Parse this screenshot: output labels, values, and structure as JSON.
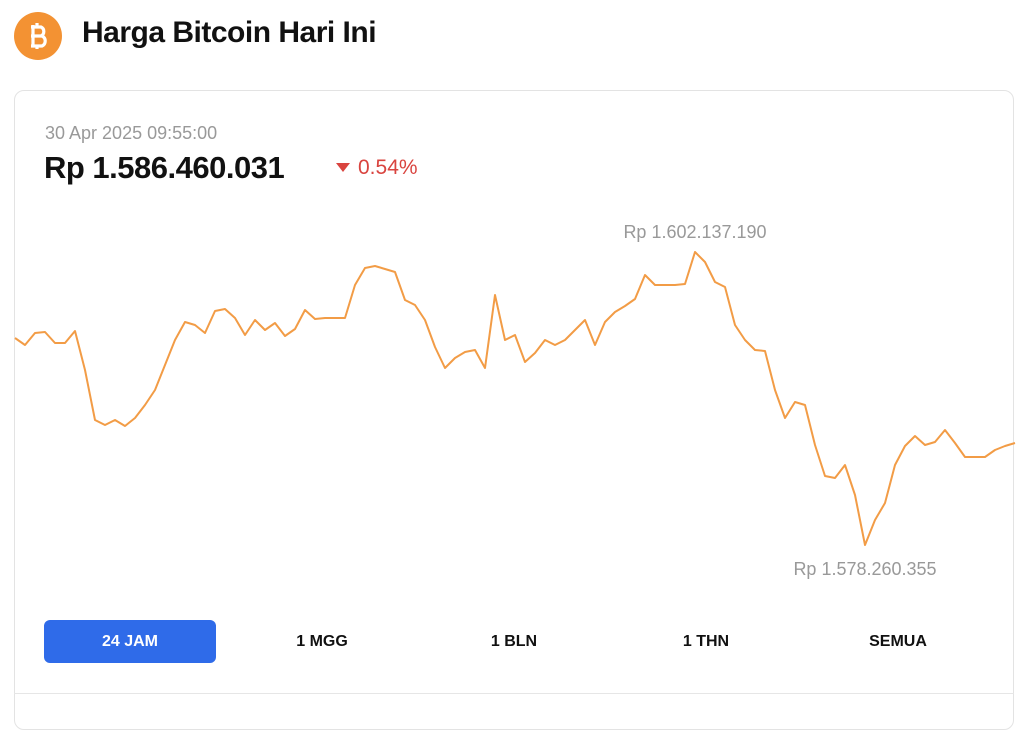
{
  "header": {
    "title": "Harga Bitcoin Hari Ini"
  },
  "widget": {
    "timestamp": "30 Apr 2025 09:55:00",
    "price": "Rp 1.586.460.031",
    "change": "0.54%",
    "ranges": [
      "24 JAM",
      "1 MGG",
      "1 BLN",
      "1 THN",
      "SEMUA"
    ]
  },
  "chart_data": {
    "type": "line",
    "color": "#f29c46",
    "ylim": [
      1573780000,
      1605150000
    ],
    "values": [
      1595129000,
      1594558000,
      1595536000,
      1595618000,
      1594721000,
      1594721000,
      1595699000,
      1592521000,
      1588447000,
      1588039000,
      1588447000,
      1587958000,
      1588609000,
      1589669000,
      1590891000,
      1592929000,
      1594966000,
      1596433000,
      1596188000,
      1595536000,
      1597329000,
      1597492000,
      1596759000,
      1595373000,
      1596596000,
      1595781000,
      1596351000,
      1595292000,
      1595862000,
      1597411000,
      1596677000,
      1596759000,
      1596759000,
      1596759000,
      1599448000,
      1600833000,
      1600996000,
      1600752000,
      1600507000,
      1598225000,
      1597818000,
      1596596000,
      1594395000,
      1592684000,
      1593499000,
      1593988000,
      1594151000,
      1592684000,
      1598633000,
      1594966000,
      1595373000,
      1593173000,
      1593906000,
      1594966000,
      1594558000,
      1594966000,
      1595781000,
      1596596000,
      1594558000,
      1596433000,
      1597248000,
      1597736000,
      1598307000,
      1600263000,
      1599448000,
      1599448000,
      1599448000,
      1599529000,
      1602137190,
      1601322000,
      1599692000,
      1599285000,
      1596188000,
      1594966000,
      1594151000,
      1594069000,
      1590891000,
      1588609000,
      1589913000,
      1589669000,
      1586409000,
      1583883000,
      1583720000,
      1584779000,
      1582335000,
      1578260355,
      1580297000,
      1581683000,
      1584779000,
      1586328000,
      1587143000,
      1586409000,
      1586654000,
      1587632000,
      1586572000,
      1585431000,
      1585431000,
      1585431000,
      1586002000,
      1586328000,
      1586572000
    ],
    "annotations": [
      {
        "value": 1602137190,
        "label": "Rp 1.602.137.190",
        "position": "above"
      },
      {
        "value": 1578260355,
        "label": "Rp 1.578.260.355",
        "position": "below"
      }
    ]
  }
}
